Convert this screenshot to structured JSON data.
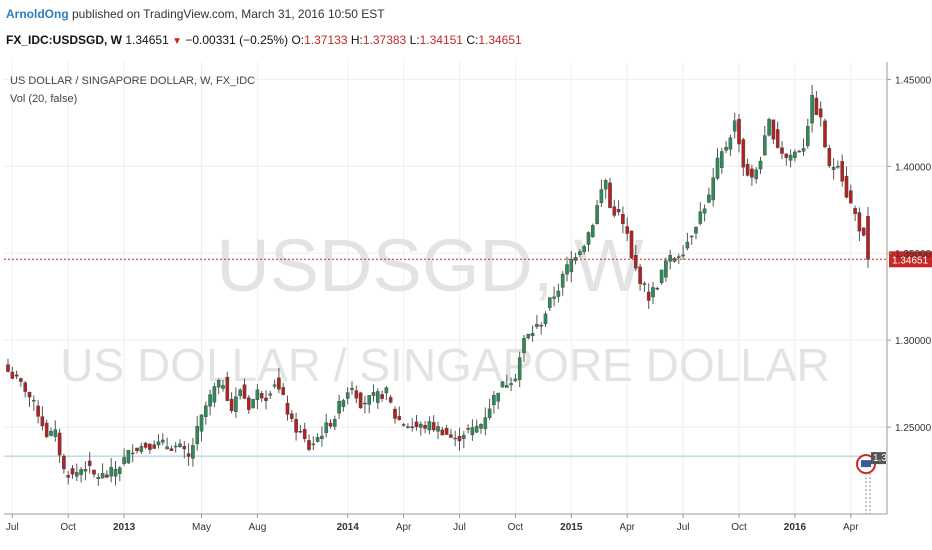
{
  "header": {
    "author": "ArnoldOng",
    "published_text": "published on TradingView.com, March 31, 2016 10:50 EST",
    "symbol": "FX_IDC:USDSGD, W",
    "last": "1.34651",
    "change": "−0.00331 (−0.25%)",
    "o_label": "O:",
    "o_value": "1.37133",
    "h_label": "H:",
    "h_value": "1.37383",
    "l_label": "L:",
    "l_value": "1.34151",
    "c_label": "C:",
    "c_value": "1.34651"
  },
  "chart_data": {
    "type": "candlestick",
    "title": "US DOLLAR / SINGAPORE DOLLAR, W, FX_IDC",
    "indicator": "Vol (20, false)",
    "watermark_line1": "USDSGD, W",
    "watermark_line2": "US DOLLAR / SINGAPORE DOLLAR",
    "x_ticks": [
      {
        "label": "Jul",
        "bold": false,
        "week": 1
      },
      {
        "label": "Oct",
        "bold": false,
        "week": 14
      },
      {
        "label": "2013",
        "bold": true,
        "week": 27
      },
      {
        "label": "May",
        "bold": false,
        "week": 45
      },
      {
        "label": "Aug",
        "bold": false,
        "week": 58
      },
      {
        "label": "2014",
        "bold": true,
        "week": 79
      },
      {
        "label": "Apr",
        "bold": false,
        "week": 92
      },
      {
        "label": "Jul",
        "bold": false,
        "week": 105
      },
      {
        "label": "Oct",
        "bold": false,
        "week": 118
      },
      {
        "label": "2015",
        "bold": true,
        "week": 131
      },
      {
        "label": "Apr",
        "bold": false,
        "week": 144
      },
      {
        "label": "Jul",
        "bold": false,
        "week": 157
      },
      {
        "label": "Oct",
        "bold": false,
        "week": 170
      },
      {
        "label": "2016",
        "bold": true,
        "week": 183
      },
      {
        "label": "Apr",
        "bold": false,
        "week": 196
      }
    ],
    "y_ticks": [
      "1.25000",
      "1.30000",
      "1.35000",
      "1.40000",
      "1.45000"
    ],
    "y_range": [
      1.2,
      1.46
    ],
    "last_price": 1.34651,
    "last_price_label": "1.34651",
    "support_level": 1.2333,
    "event_badge": "1.3",
    "up_color": "#2e8b57",
    "down_color": "#b22222",
    "close_path": [
      [
        0,
        1.282
      ],
      [
        4,
        1.272
      ],
      [
        7,
        1.258
      ],
      [
        9,
        1.246
      ],
      [
        11,
        1.246
      ],
      [
        13,
        1.225
      ],
      [
        15,
        1.222
      ],
      [
        18,
        1.228
      ],
      [
        20,
        1.222
      ],
      [
        23,
        1.222
      ],
      [
        26,
        1.228
      ],
      [
        29,
        1.238
      ],
      [
        33,
        1.24
      ],
      [
        36,
        1.24
      ],
      [
        40,
        1.238
      ],
      [
        42,
        1.232
      ],
      [
        44,
        1.248
      ],
      [
        46,
        1.262
      ],
      [
        48,
        1.272
      ],
      [
        50,
        1.276
      ],
      [
        52,
        1.26
      ],
      [
        54,
        1.272
      ],
      [
        56,
        1.262
      ],
      [
        58,
        1.27
      ],
      [
        60,
        1.268
      ],
      [
        62,
        1.276
      ],
      [
        64,
        1.266
      ],
      [
        66,
        1.252
      ],
      [
        68,
        1.246
      ],
      [
        70,
        1.238
      ],
      [
        72,
        1.244
      ],
      [
        74,
        1.25
      ],
      [
        76,
        1.256
      ],
      [
        78,
        1.268
      ],
      [
        80,
        1.274
      ],
      [
        82,
        1.264
      ],
      [
        84,
        1.266
      ],
      [
        86,
        1.268
      ],
      [
        88,
        1.27
      ],
      [
        90,
        1.256
      ],
      [
        92,
        1.252
      ],
      [
        95,
        1.25
      ],
      [
        98,
        1.251
      ],
      [
        101,
        1.248
      ],
      [
        104,
        1.242
      ],
      [
        106,
        1.247
      ],
      [
        108,
        1.248
      ],
      [
        110,
        1.252
      ],
      [
        112,
        1.262
      ],
      [
        114,
        1.272
      ],
      [
        116,
        1.276
      ],
      [
        118,
        1.28
      ],
      [
        120,
        1.3
      ],
      [
        122,
        1.305
      ],
      [
        124,
        1.31
      ],
      [
        126,
        1.322
      ],
      [
        128,
        1.33
      ],
      [
        130,
        1.342
      ],
      [
        132,
        1.35
      ],
      [
        134,
        1.356
      ],
      [
        136,
        1.368
      ],
      [
        138,
        1.386
      ],
      [
        139,
        1.392
      ],
      [
        140,
        1.376
      ],
      [
        142,
        1.372
      ],
      [
        144,
        1.36
      ],
      [
        145,
        1.346
      ],
      [
        147,
        1.335
      ],
      [
        149,
        1.325
      ],
      [
        151,
        1.332
      ],
      [
        153,
        1.345
      ],
      [
        155,
        1.348
      ],
      [
        157,
        1.352
      ],
      [
        159,
        1.362
      ],
      [
        161,
        1.373
      ],
      [
        163,
        1.382
      ],
      [
        165,
        1.402
      ],
      [
        167,
        1.412
      ],
      [
        169,
        1.425
      ],
      [
        170,
        1.415
      ],
      [
        171,
        1.4
      ],
      [
        173,
        1.392
      ],
      [
        175,
        1.405
      ],
      [
        177,
        1.425
      ],
      [
        179,
        1.412
      ],
      [
        181,
        1.405
      ],
      [
        183,
        1.408
      ],
      [
        185,
        1.412
      ],
      [
        187,
        1.438
      ],
      [
        189,
        1.426
      ],
      [
        191,
        1.398
      ],
      [
        193,
        1.403
      ],
      [
        195,
        1.384
      ],
      [
        197,
        1.372
      ],
      [
        199,
        1.358
      ],
      [
        200,
        1.34651
      ]
    ]
  },
  "colors": {
    "up": "#2e8b57",
    "down": "#b22222",
    "price_line": "#c62828",
    "support_line": "#9cc8d4",
    "watermark": "#e3e3e3",
    "grid": "#eeeeee"
  }
}
